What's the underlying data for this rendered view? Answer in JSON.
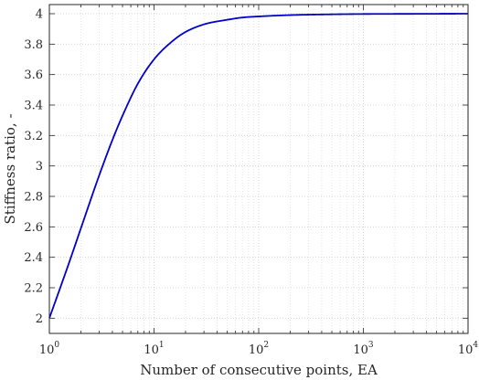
{
  "chart_data": {
    "type": "line",
    "xlabel": "Number of consecutive points, EA",
    "ylabel": "Stiffness ratio, -",
    "xscale": "log",
    "xlim": [
      1,
      10000
    ],
    "ylim": [
      1.9,
      4.06
    ],
    "x_ticks": [
      {
        "base": "10",
        "exp": "0",
        "value": 1
      },
      {
        "base": "10",
        "exp": "1",
        "value": 10
      },
      {
        "base": "10",
        "exp": "2",
        "value": 100
      },
      {
        "base": "10",
        "exp": "3",
        "value": 1000
      },
      {
        "base": "10",
        "exp": "4",
        "value": 10000
      }
    ],
    "y_ticks": [
      "2",
      "2.2",
      "2.4",
      "2.6",
      "2.8",
      "3",
      "3.2",
      "3.4",
      "3.6",
      "3.8",
      "4"
    ],
    "grid": true,
    "minor_grid": true,
    "box": true,
    "series": [
      {
        "color": "#0000cc",
        "x": [
          1,
          1.5,
          2,
          3,
          4,
          5,
          7,
          10,
          15,
          20,
          30,
          50,
          70,
          100,
          200,
          500,
          1000,
          3000,
          10000
        ],
        "y": [
          2.0,
          2.34,
          2.59,
          2.94,
          3.17,
          3.33,
          3.54,
          3.7,
          3.82,
          3.88,
          3.93,
          3.96,
          3.975,
          3.982,
          3.991,
          3.996,
          3.998,
          3.999,
          4.0
        ]
      }
    ]
  }
}
